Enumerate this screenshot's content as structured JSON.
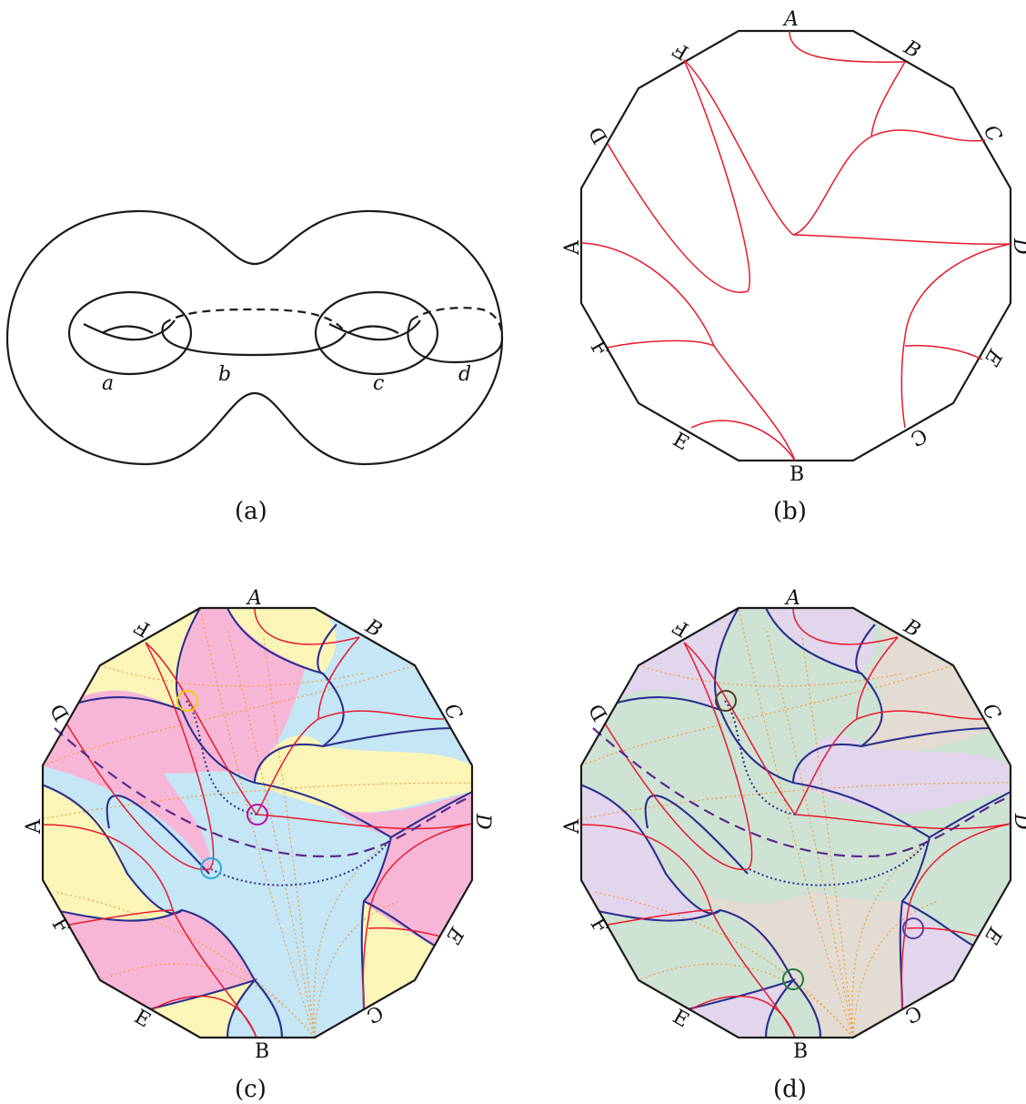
{
  "panels": {
    "a": {
      "caption": "(a)",
      "curve_labels": [
        "a",
        "b",
        "c",
        "d"
      ]
    },
    "b": {
      "caption": "(b)",
      "edge_labels": [
        "A",
        "B",
        "C",
        "D",
        "E",
        "C",
        "B",
        "E",
        "F",
        "A",
        "D",
        "F"
      ]
    },
    "c": {
      "caption": "(c)",
      "edge_labels": [
        "A",
        "B",
        "C",
        "D",
        "E",
        "C",
        "B",
        "E",
        "F",
        "A",
        "D",
        "F"
      ],
      "region_colors": [
        "#f7b6d6",
        "#fbf5b8",
        "#c4e6f5"
      ],
      "marker_colors": [
        "#f0d000",
        "#c000a0",
        "#2aa8e0"
      ]
    },
    "d": {
      "caption": "(d)",
      "edge_labels": [
        "A",
        "B",
        "C",
        "D",
        "E",
        "C",
        "B",
        "E",
        "F",
        "A",
        "D",
        "F"
      ],
      "region_colors": [
        "#cfe3d4",
        "#e2d6ec",
        "#e3dcd2"
      ],
      "marker_colors": [
        "#5a3a2a",
        "#5a3a9a",
        "#1e7a3a"
      ]
    }
  },
  "colors": {
    "red_curve": "#e8192c",
    "blue_curve": "#2b2f8f",
    "dotted_orange": "#f0a040",
    "dashed_purple": "#5a2a8c"
  }
}
